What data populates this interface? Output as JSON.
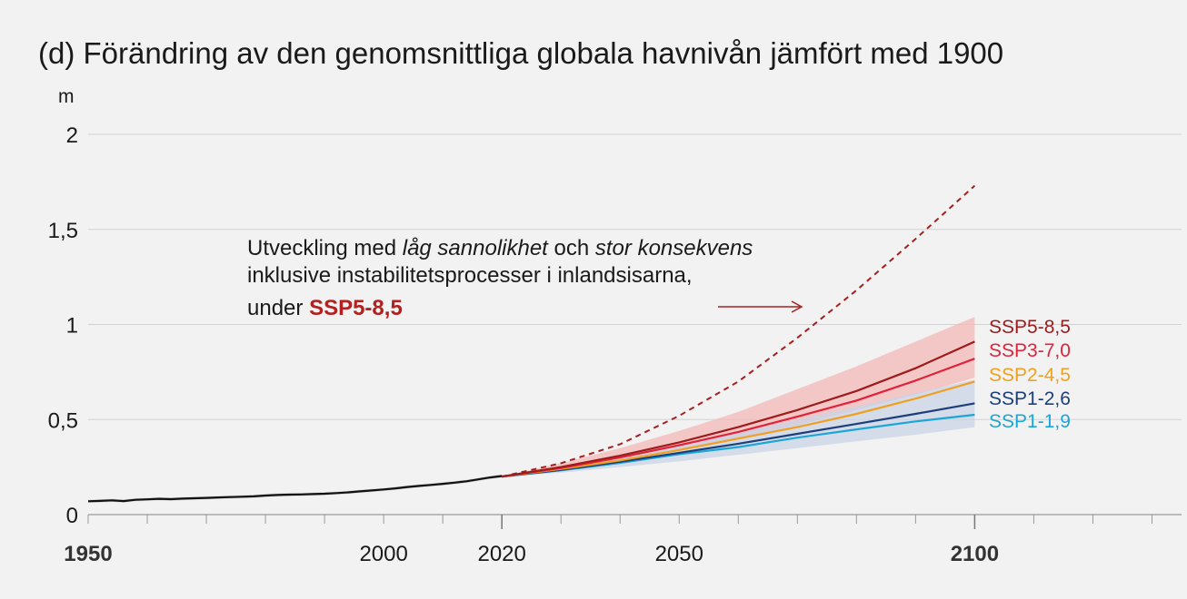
{
  "chart_data": {
    "type": "line",
    "title": "(d) Förändring av den genomsnittliga globala havnivån jämfört med 1900",
    "ylabel": "m",
    "xlim": [
      1950,
      2135
    ],
    "ylim": [
      0,
      2
    ],
    "x_ticks": [
      {
        "value": 1950,
        "label": "1950",
        "bold": true
      },
      {
        "value": 2000,
        "label": "2000",
        "bold": false
      },
      {
        "value": 2020,
        "label": "2020",
        "bold": false
      },
      {
        "value": 2050,
        "label": "2050",
        "bold": false
      },
      {
        "value": 2100,
        "label": "2100",
        "bold": true
      }
    ],
    "y_ticks": [
      {
        "value": 0,
        "label": "0"
      },
      {
        "value": 0.5,
        "label": "0,5"
      },
      {
        "value": 1,
        "label": "1"
      },
      {
        "value": 1.5,
        "label": "1,5"
      },
      {
        "value": 2,
        "label": "2"
      }
    ],
    "gridlines": true,
    "annotation": {
      "line1_a": "Utveckling med ",
      "line1_b": "låg sannolikhet",
      "line1_c": " och ",
      "line1_d": "stor konsekvens",
      "line2": "inklusive instabilitetsprocesser i inlandsisarna,",
      "line3_a": "under ",
      "line3_b": "SSP5-8,5"
    },
    "historical": {
      "color": "#111111",
      "x": [
        1950,
        1952,
        1954,
        1956,
        1958,
        1960,
        1962,
        1964,
        1966,
        1968,
        1970,
        1972,
        1974,
        1976,
        1978,
        1980,
        1982,
        1984,
        1986,
        1988,
        1990,
        1992,
        1994,
        1996,
        1998,
        2000,
        2002,
        2004,
        2006,
        2008,
        2010,
        2012,
        2014,
        2016,
        2018,
        2020
      ],
      "y": [
        0.07,
        0.072,
        0.075,
        0.071,
        0.078,
        0.08,
        0.083,
        0.081,
        0.084,
        0.086,
        0.088,
        0.09,
        0.092,
        0.094,
        0.096,
        0.1,
        0.103,
        0.105,
        0.106,
        0.108,
        0.11,
        0.113,
        0.117,
        0.122,
        0.127,
        0.132,
        0.138,
        0.145,
        0.151,
        0.156,
        0.162,
        0.168,
        0.175,
        0.185,
        0.195,
        0.203
      ]
    },
    "low_likelihood": {
      "color": "#a51f1f",
      "x": [
        2020,
        2030,
        2040,
        2050,
        2060,
        2070,
        2080,
        2090,
        2100
      ],
      "y": [
        0.2,
        0.27,
        0.37,
        0.52,
        0.7,
        0.93,
        1.18,
        1.45,
        1.73
      ]
    },
    "x": [
      2020,
      2030,
      2040,
      2050,
      2060,
      2070,
      2080,
      2090,
      2100
    ],
    "series": [
      {
        "name": "SSP5-8,5",
        "color": "#9e1b1b",
        "values": [
          0.2,
          0.25,
          0.31,
          0.38,
          0.46,
          0.55,
          0.65,
          0.77,
          0.91
        ],
        "band_lower": [
          0.2,
          0.23,
          0.28,
          0.34,
          0.4,
          0.47,
          0.55,
          0.63,
          0.72
        ],
        "band_upper": [
          0.2,
          0.27,
          0.35,
          0.44,
          0.54,
          0.66,
          0.78,
          0.91,
          1.04
        ],
        "band_color": "#f4b8b8"
      },
      {
        "name": "SSP3-7,0",
        "color": "#e0223a",
        "values": [
          0.2,
          0.245,
          0.3,
          0.365,
          0.435,
          0.515,
          0.6,
          0.705,
          0.82
        ]
      },
      {
        "name": "SSP2-4,5",
        "color": "#f0a020",
        "values": [
          0.2,
          0.24,
          0.285,
          0.34,
          0.4,
          0.46,
          0.53,
          0.61,
          0.7
        ]
      },
      {
        "name": "SSP1-2,6",
        "color": "#1c3f7a",
        "values": [
          0.2,
          0.235,
          0.278,
          0.325,
          0.373,
          0.425,
          0.477,
          0.53,
          0.585
        ],
        "band_lower": [
          0.2,
          0.22,
          0.25,
          0.28,
          0.315,
          0.35,
          0.385,
          0.42,
          0.46
        ],
        "band_upper": [
          0.2,
          0.255,
          0.31,
          0.37,
          0.43,
          0.5,
          0.57,
          0.64,
          0.71
        ],
        "band_color": "#c9d3e6"
      },
      {
        "name": "SSP1-1,9",
        "color": "#1aa6d6",
        "values": [
          0.2,
          0.233,
          0.272,
          0.318,
          0.355,
          0.405,
          0.448,
          0.49,
          0.525
        ]
      }
    ]
  }
}
